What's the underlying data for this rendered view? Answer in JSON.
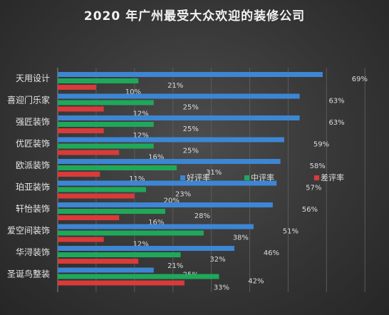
{
  "chart_data": {
    "type": "bar",
    "orientation": "horizontal",
    "title": "2020 年广州最受大众欢迎的装修公司",
    "categories": [
      "天用设计",
      "喜迎门乐家",
      "强匠装饰",
      "优匠装饰",
      "欧派装饰",
      "珀亚装饰",
      "轩怡装饰",
      "爱空间装饰",
      "华浔装饰",
      "圣诞鸟整装"
    ],
    "series": [
      {
        "name": "好评率",
        "color": "#3d86d4",
        "values": [
          69,
          63,
          63,
          59,
          58,
          57,
          56,
          51,
          46,
          25
        ]
      },
      {
        "name": "中评率",
        "color": "#1fa85a",
        "values": [
          21,
          25,
          25,
          25,
          31,
          23,
          28,
          38,
          32,
          42
        ]
      },
      {
        "name": "差评率",
        "color": "#d93a3a",
        "values": [
          10,
          12,
          12,
          16,
          11,
          20,
          16,
          12,
          21,
          33
        ]
      }
    ],
    "value_suffix": "%",
    "xlim": [
      0,
      80
    ],
    "grid": true,
    "legend_position": "center"
  }
}
